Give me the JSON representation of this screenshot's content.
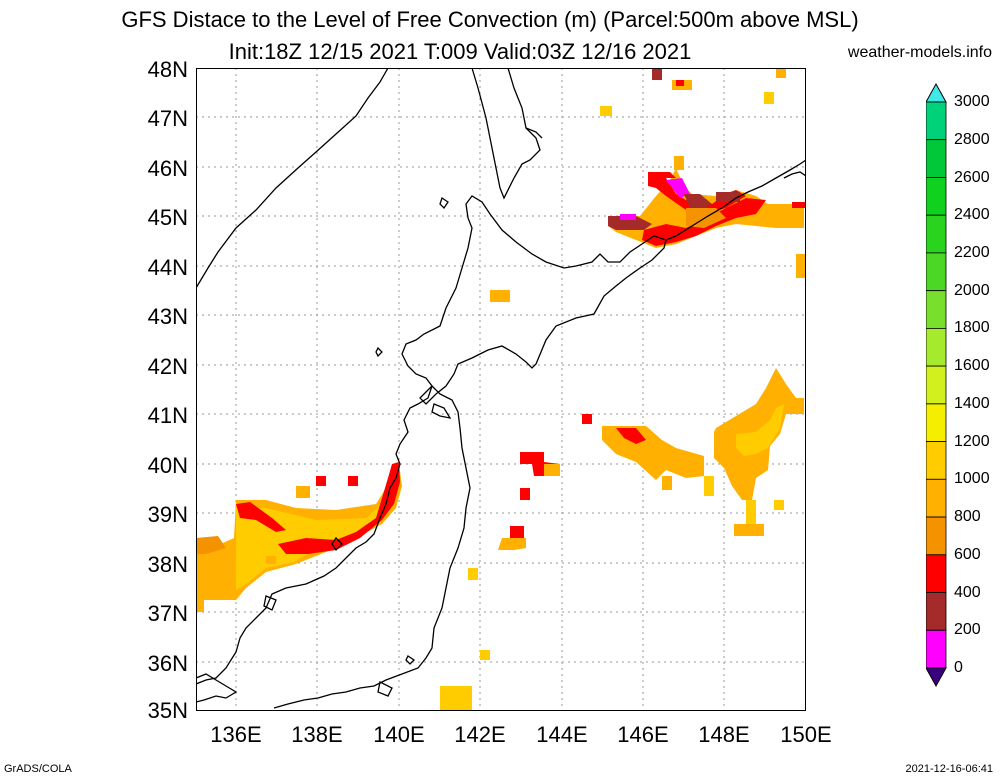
{
  "title_line1": "GFS Distace to the Level of Free Convection (m) (Parcel:500m above MSL)",
  "title_line2": "Init:18Z 12/15 2021 T:009 Valid:03Z 12/16 2021",
  "site": "weather-models.info",
  "footer_left": "GrADS/COLA",
  "footer_right": "2021-12-16-06:41",
  "lat_labels": [
    "48N",
    "47N",
    "46N",
    "45N",
    "44N",
    "43N",
    "42N",
    "41N",
    "40N",
    "39N",
    "38N",
    "37N",
    "36N",
    "35N"
  ],
  "lon_labels": [
    "136E",
    "138E",
    "140E",
    "142E",
    "144E",
    "146E",
    "148E",
    "150E"
  ],
  "colorbar": {
    "labels": [
      "3000",
      "2800",
      "2600",
      "2400",
      "2200",
      "2000",
      "1800",
      "1600",
      "1400",
      "1200",
      "1000",
      "800",
      "600",
      "400",
      "200",
      "0"
    ],
    "colors": [
      "#00e8c8",
      "#00d27a",
      "#00c838",
      "#10d21e",
      "#2ad41e",
      "#4cd626",
      "#78e02c",
      "#a6ea2e",
      "#d2f01e",
      "#f6ee00",
      "#ffcc00",
      "#ffb000",
      "#f59200",
      "#ff0000",
      "#a52a2a",
      "#ff00ff",
      "#3a0080"
    ],
    "top_arrow_color": "#40e8e8",
    "bottom_arrow_color": "#3a0080"
  }
}
